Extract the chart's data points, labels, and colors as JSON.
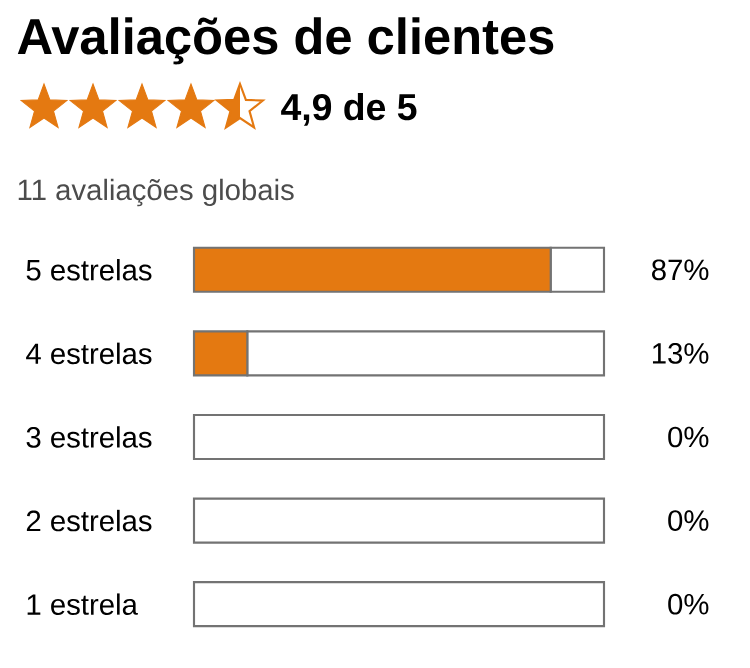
{
  "chart_data": {
    "type": "bar",
    "orientation": "horizontal",
    "stacked": true,
    "title": "Avaliações de clientes",
    "subtitle": "4,9 de 5",
    "annotations": [
      "11 avaliações globais"
    ],
    "categories": [
      "5 estrelas",
      "4 estrelas",
      "3 estrelas",
      "2 estrelas",
      "1 estrela"
    ],
    "series": [
      {
        "color": "#e47911",
        "values": [
          87,
          13,
          0,
          0,
          0
        ],
        "value_labels": [
          "87%",
          "13%",
          "0%",
          "0%",
          "0%"
        ]
      },
      {
        "color": "#ffffff",
        "values": [
          13,
          87,
          100,
          100,
          100
        ]
      }
    ],
    "tick_labels": "y"
  }
}
